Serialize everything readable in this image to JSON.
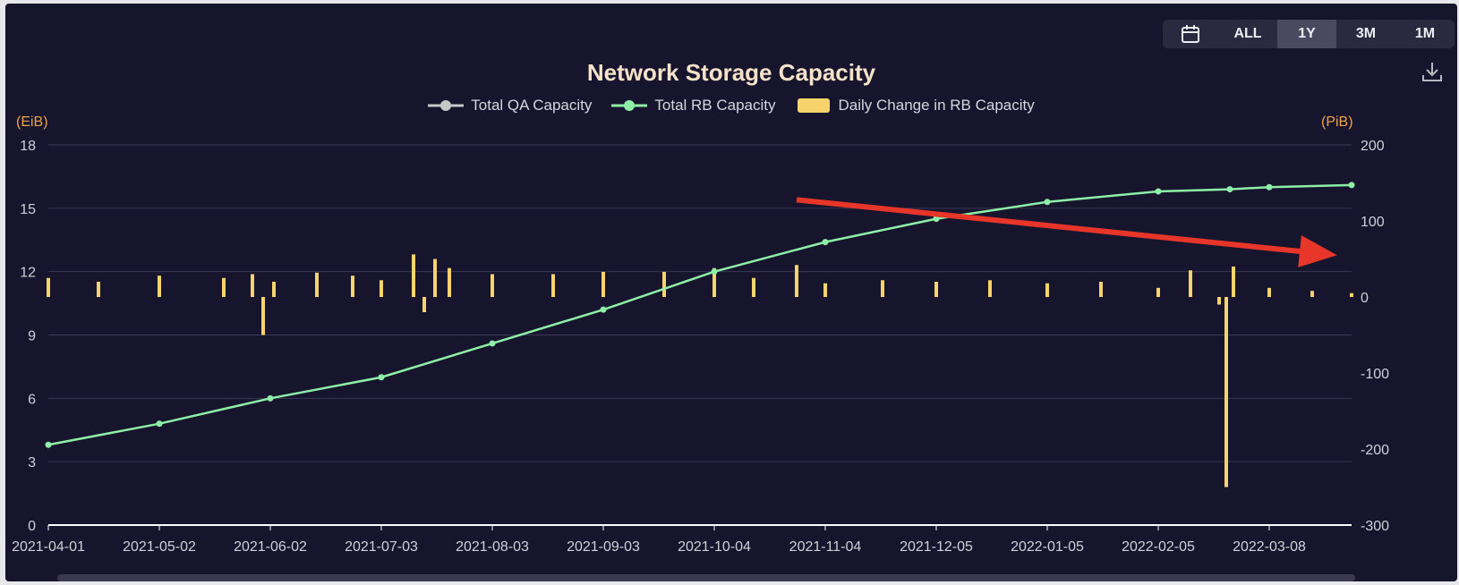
{
  "toolbar": {
    "calendar_icon": "calendar-icon",
    "ranges": [
      "ALL",
      "1Y",
      "3M",
      "1M"
    ],
    "active_range": "1Y",
    "download_icon": "download-icon"
  },
  "colors": {
    "background": "#16152d",
    "qa": "#c8c8c8",
    "rb": "#8ef0a6",
    "bars": "#f6d36b",
    "arrow": "#e8352a",
    "unit": "#f0a24a"
  },
  "chart_data": {
    "type": "line",
    "title": "Network Storage Capacity",
    "legend": [
      "Total QA Capacity",
      "Total RB Capacity",
      "Daily Change in RB Capacity"
    ],
    "legend_position": "top-center",
    "left_axis": {
      "unit": "(EiB)",
      "ticks": [
        0,
        3,
        6,
        9,
        12,
        15,
        18
      ],
      "range": [
        0,
        18
      ]
    },
    "right_axis": {
      "unit": "(PiB)",
      "ticks": [
        -300,
        -200,
        -100,
        0,
        100,
        200
      ],
      "range": [
        -300,
        200
      ]
    },
    "x_ticks": [
      "2021-04-01",
      "2021-05-02",
      "2021-06-02",
      "2021-07-03",
      "2021-08-03",
      "2021-09-03",
      "2021-10-04",
      "2021-11-04",
      "2021-12-05",
      "2022-01-05",
      "2022-02-05",
      "2022-03-08"
    ],
    "x_range": [
      "2021-04-01",
      "2022-03-31"
    ],
    "grid": true,
    "series": [
      {
        "name": "Total RB Capacity",
        "axis": "left",
        "x": [
          "2021-04-01",
          "2021-05-02",
          "2021-06-02",
          "2021-07-03",
          "2021-08-03",
          "2021-09-03",
          "2021-10-04",
          "2021-11-04",
          "2021-12-05",
          "2022-01-05",
          "2022-02-05",
          "2022-02-25",
          "2022-03-08",
          "2022-03-31"
        ],
        "values": [
          3.8,
          4.8,
          6.0,
          7.0,
          8.6,
          10.2,
          12.0,
          13.4,
          14.5,
          15.3,
          15.8,
          15.9,
          16.0,
          16.1
        ]
      },
      {
        "name": "Daily Change in RB Capacity",
        "axis": "right",
        "type": "bar",
        "x": [
          "2021-04-01",
          "2021-04-15",
          "2021-05-02",
          "2021-05-20",
          "2021-05-28",
          "2021-05-31",
          "2021-06-03",
          "2021-06-15",
          "2021-06-25",
          "2021-07-03",
          "2021-07-12",
          "2021-07-15",
          "2021-07-18",
          "2021-07-22",
          "2021-08-03",
          "2021-08-20",
          "2021-09-03",
          "2021-09-20",
          "2021-10-04",
          "2021-10-15",
          "2021-10-27",
          "2021-11-04",
          "2021-11-20",
          "2021-12-05",
          "2021-12-20",
          "2022-01-05",
          "2022-01-20",
          "2022-02-05",
          "2022-02-14",
          "2022-02-22",
          "2022-02-24",
          "2022-02-26",
          "2022-03-08",
          "2022-03-20",
          "2022-03-31"
        ],
        "values": [
          25,
          20,
          28,
          25,
          30,
          -50,
          20,
          32,
          28,
          22,
          56,
          -20,
          50,
          38,
          30,
          30,
          33,
          33,
          38,
          25,
          42,
          18,
          22,
          20,
          22,
          18,
          20,
          12,
          35,
          -10,
          -250,
          40,
          12,
          8,
          5
        ]
      }
    ],
    "annotation": "red arrow pointing right and down, trending over 2021-10-27 to 2022-03-31"
  }
}
